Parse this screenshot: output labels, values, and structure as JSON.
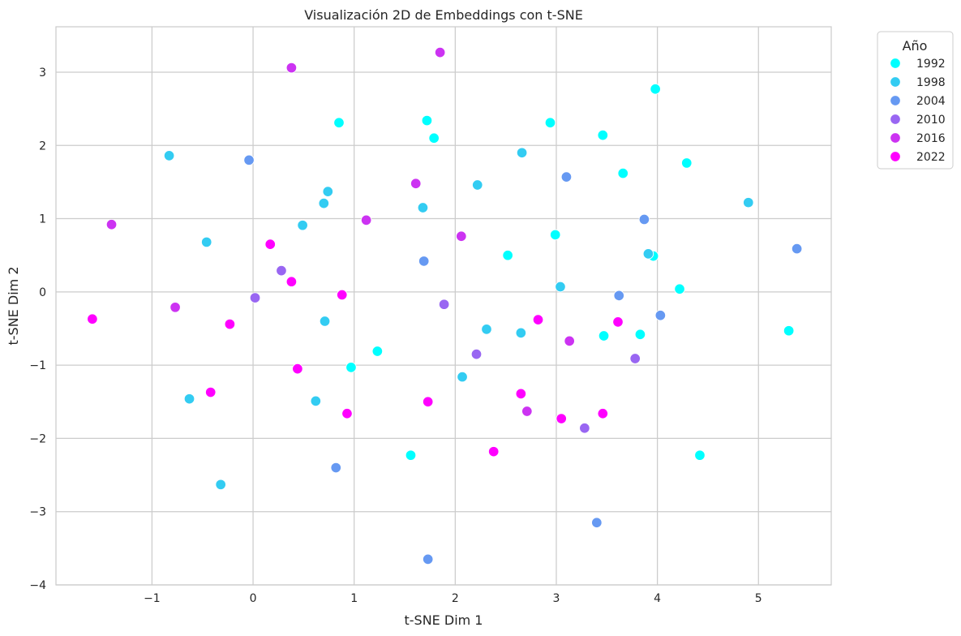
{
  "chart_data": {
    "type": "scatter",
    "title": "Visualización 2D de Embeddings con t-SNE",
    "xlabel": "t-SNE Dim 1",
    "ylabel": "t-SNE Dim 2",
    "xlim": [
      -1.95,
      5.72
    ],
    "ylim": [
      -4.0,
      3.62
    ],
    "xticks": [
      -1,
      0,
      1,
      2,
      3,
      4,
      5
    ],
    "yticks": [
      -4,
      -3,
      -2,
      -1,
      0,
      1,
      2,
      3
    ],
    "xtick_labels": [
      "−1",
      "0",
      "1",
      "2",
      "3",
      "4",
      "5"
    ],
    "ytick_labels": [
      "−4",
      "−3",
      "−2",
      "−1",
      "0",
      "1",
      "2",
      "3"
    ],
    "grid": true,
    "legend": {
      "title": "Año",
      "placement": "upper-right-outside"
    },
    "series": [
      {
        "name": "1992",
        "color": "#00FFFF",
        "points": [
          [
            0.85,
            2.31
          ],
          [
            1.72,
            2.34
          ],
          [
            1.79,
            2.1
          ],
          [
            2.94,
            2.31
          ],
          [
            3.46,
            2.14
          ],
          [
            3.98,
            2.77
          ],
          [
            3.66,
            1.62
          ],
          [
            4.29,
            1.76
          ],
          [
            2.99,
            0.78
          ],
          [
            2.52,
            0.5
          ],
          [
            3.96,
            0.49
          ],
          [
            4.22,
            0.04
          ],
          [
            5.3,
            -0.53
          ],
          [
            3.47,
            -0.6
          ],
          [
            3.83,
            -0.58
          ],
          [
            1.23,
            -0.81
          ],
          [
            0.97,
            -1.03
          ],
          [
            1.56,
            -2.23
          ],
          [
            4.42,
            -2.23
          ]
        ]
      },
      {
        "name": "1998",
        "color": "#33CCF2",
        "points": [
          [
            -0.83,
            1.86
          ],
          [
            0.74,
            1.37
          ],
          [
            0.7,
            1.21
          ],
          [
            0.49,
            0.91
          ],
          [
            1.68,
            1.15
          ],
          [
            2.22,
            1.46
          ],
          [
            2.66,
            1.9
          ],
          [
            4.9,
            1.22
          ],
          [
            3.91,
            0.52
          ],
          [
            -0.46,
            0.68
          ],
          [
            3.04,
            0.07
          ],
          [
            0.71,
            -0.4
          ],
          [
            2.31,
            -0.51
          ],
          [
            2.65,
            -0.56
          ],
          [
            2.07,
            -1.16
          ],
          [
            -0.63,
            -1.46
          ],
          [
            0.62,
            -1.49
          ],
          [
            -0.32,
            -2.63
          ]
        ]
      },
      {
        "name": "2004",
        "color": "#6699F2",
        "points": [
          [
            -0.04,
            1.8
          ],
          [
            3.1,
            1.57
          ],
          [
            3.87,
            0.99
          ],
          [
            5.38,
            0.59
          ],
          [
            1.69,
            0.42
          ],
          [
            3.62,
            -0.05
          ],
          [
            4.03,
            -0.32
          ],
          [
            0.82,
            -2.4
          ],
          [
            3.4,
            -3.15
          ],
          [
            1.73,
            -3.65
          ]
        ]
      },
      {
        "name": "2010",
        "color": "#9966F2",
        "points": [
          [
            0.28,
            0.29
          ],
          [
            0.02,
            -0.08
          ],
          [
            1.89,
            -0.17
          ],
          [
            2.21,
            -0.85
          ],
          [
            3.78,
            -0.91
          ],
          [
            3.28,
            -1.86
          ]
        ]
      },
      {
        "name": "2016",
        "color": "#CC33F2",
        "points": [
          [
            0.38,
            3.06
          ],
          [
            1.85,
            3.27
          ],
          [
            -1.4,
            0.92
          ],
          [
            1.61,
            1.48
          ],
          [
            1.12,
            0.98
          ],
          [
            2.06,
            0.76
          ],
          [
            -0.77,
            -0.21
          ],
          [
            3.13,
            -0.67
          ],
          [
            2.71,
            -1.63
          ]
        ]
      },
      {
        "name": "2022",
        "color": "#FF00FF",
        "points": [
          [
            0.17,
            0.65
          ],
          [
            0.38,
            0.14
          ],
          [
            0.88,
            -0.04
          ],
          [
            -1.59,
            -0.37
          ],
          [
            -0.23,
            -0.44
          ],
          [
            2.82,
            -0.38
          ],
          [
            3.61,
            -0.41
          ],
          [
            0.44,
            -1.05
          ],
          [
            -0.42,
            -1.37
          ],
          [
            0.93,
            -1.66
          ],
          [
            1.73,
            -1.5
          ],
          [
            2.65,
            -1.39
          ],
          [
            3.05,
            -1.73
          ],
          [
            3.46,
            -1.66
          ],
          [
            2.38,
            -2.18
          ]
        ]
      }
    ]
  }
}
